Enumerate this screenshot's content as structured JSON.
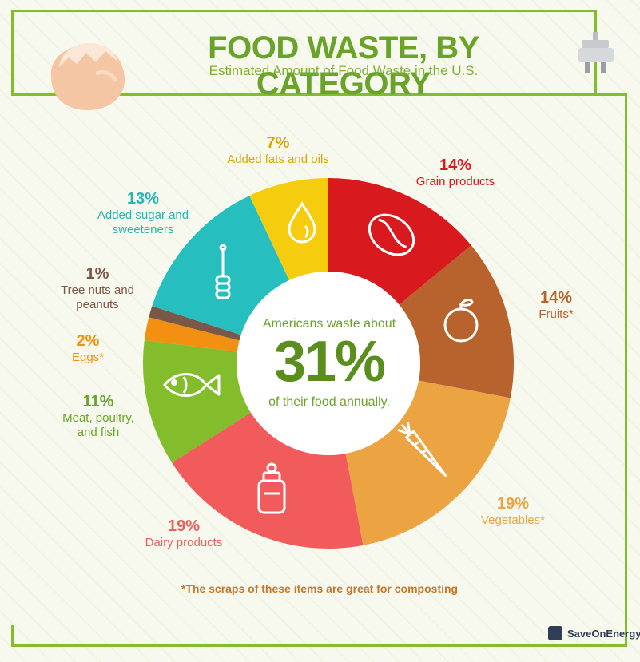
{
  "header": {
    "title": "FOOD WASTE, BY CATEGORY",
    "subtitle": "Estimated Amount of Food Waste in the U.S."
  },
  "center": {
    "line1": "Americans waste about",
    "big": "31%",
    "line2": "of their food annually."
  },
  "footnote": "*The scraps of these items are great for composting",
  "brand": "SaveOnEnergy",
  "icons": [
    "egg-shell-icon",
    "plug-icon",
    "oil-drop-icon",
    "coffee-bean-icon",
    "orange-icon",
    "carrot-icon",
    "milk-bottle-icon",
    "fish-icon",
    "honey-dipper-icon"
  ],
  "chart_data": {
    "type": "pie",
    "donut": true,
    "start_angle_deg": 0,
    "categories": [
      "Grain products",
      "Fruits*",
      "Vegetables*",
      "Dairy products",
      "Meat, poultry, and fish",
      "Eggs*",
      "Tree nuts and peanuts",
      "Added sugar and sweeteners",
      "Added fats and oils"
    ],
    "values": [
      14,
      14,
      19,
      19,
      11,
      2,
      1,
      13,
      7
    ],
    "pct_labels": [
      "14%",
      "14%",
      "19%",
      "19%",
      "11%",
      "2%",
      "1%",
      "13%",
      "7%"
    ],
    "colors": [
      "#d8191d",
      "#b8622e",
      "#eca341",
      "#f25b5b",
      "#84bd2c",
      "#f39011",
      "#7a5848",
      "#26bebe",
      "#f6cc0e"
    ]
  }
}
